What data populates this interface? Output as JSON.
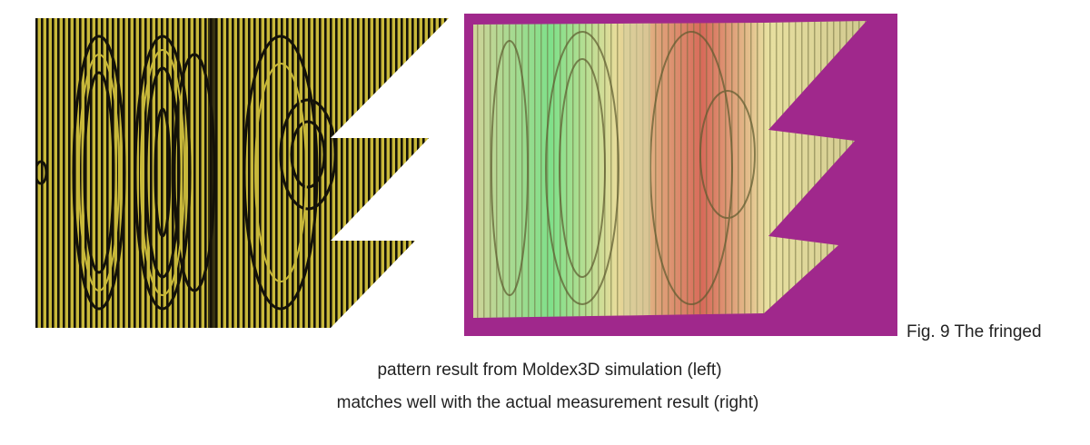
{
  "figure": {
    "left_image": {
      "icon": "fringe-pattern-simulation-image",
      "colors": {
        "background": "#ffffff",
        "fringe_light": "#c8b83a",
        "fringe_dark": "#141208"
      }
    },
    "right_image": {
      "icon": "fringe-pattern-photograph-image",
      "colors": {
        "background": "#a0288c",
        "part": "#d8d29a",
        "accent_green": "#7fe08a",
        "accent_red": "#d86a5a"
      }
    },
    "caption": {
      "line1": "Fig. 9  The fringed",
      "line2": "pattern result from Moldex3D simulation (left)",
      "line3": "matches well with the actual measurement result (right)"
    }
  }
}
